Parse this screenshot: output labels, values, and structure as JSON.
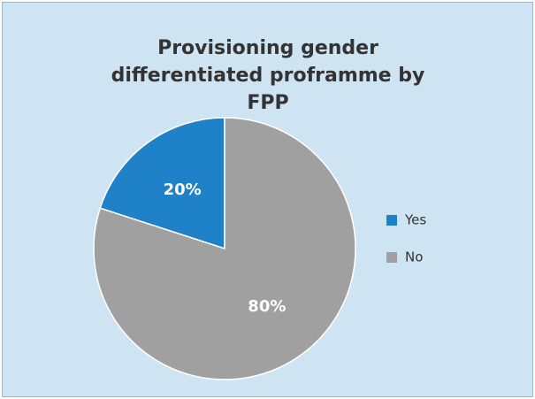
{
  "chart_data": {
    "type": "pie",
    "title": "Provisioning gender differentiated proframme by FPP",
    "categories": [
      "Yes",
      "No"
    ],
    "values": [
      20,
      80
    ],
    "value_labels": [
      "20%",
      "80%"
    ],
    "colors": [
      "#1f82c8",
      "#a0a0a0"
    ],
    "legend": "right"
  }
}
